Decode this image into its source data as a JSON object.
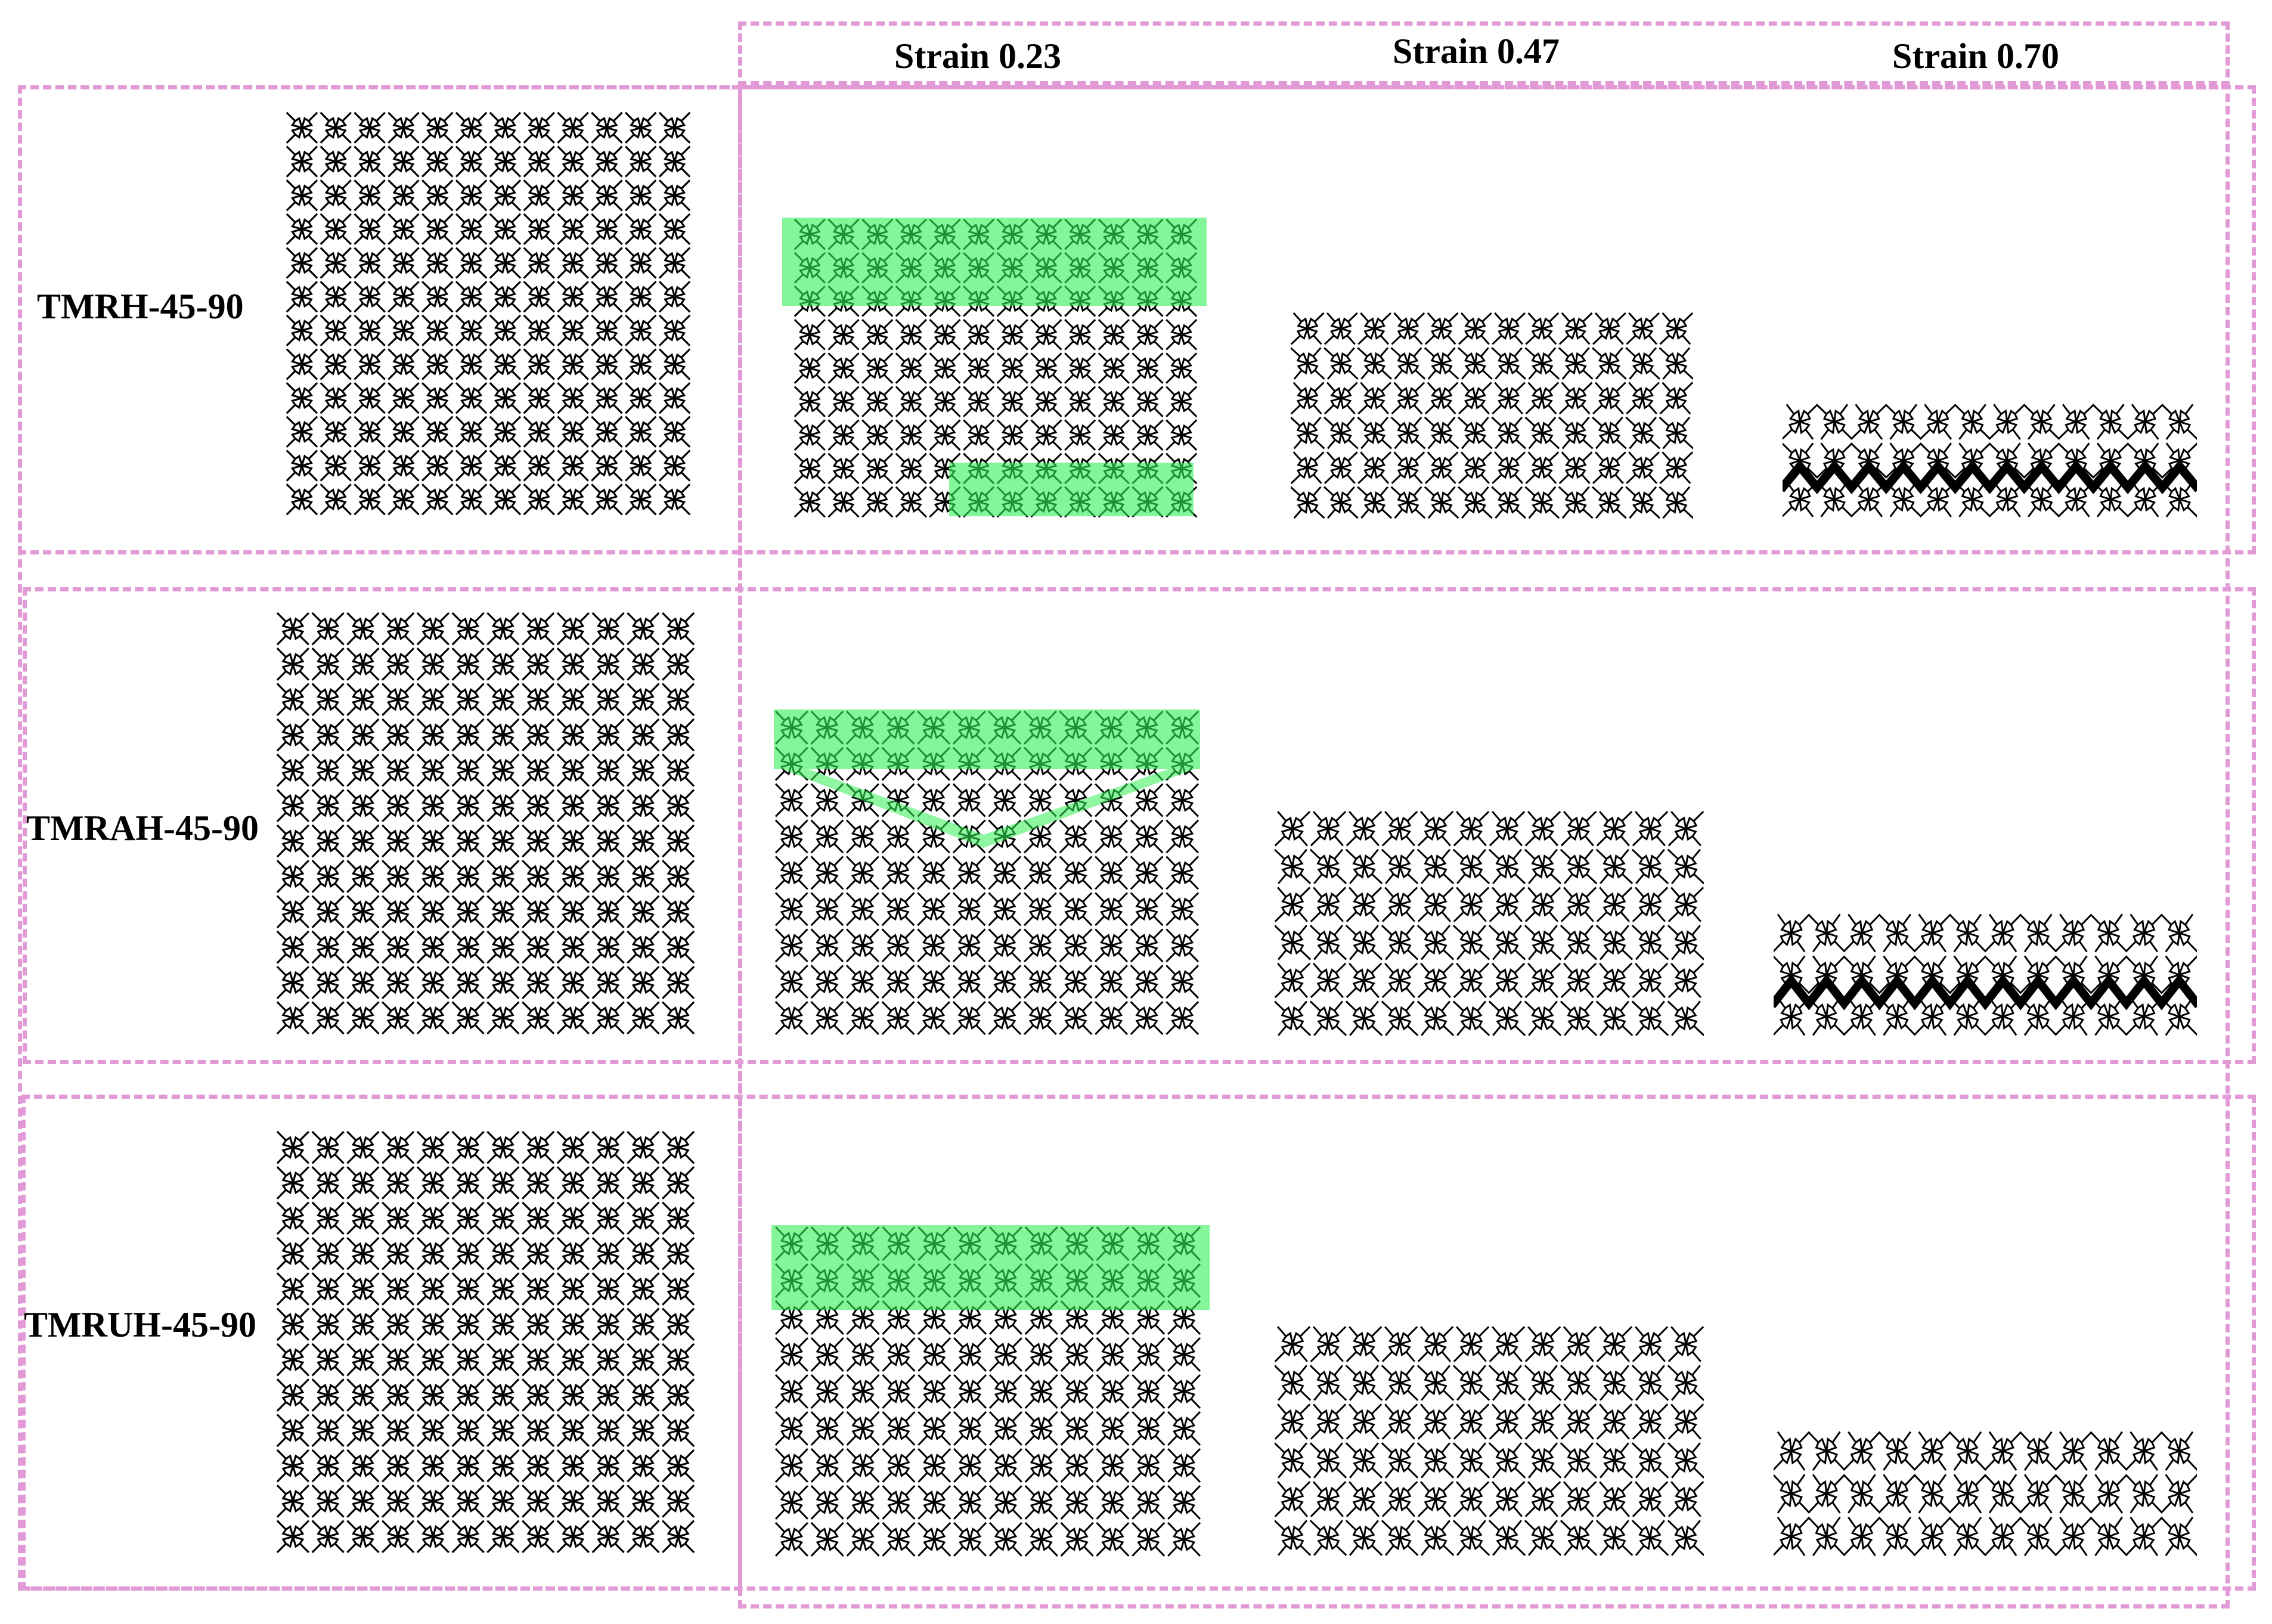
{
  "figure": {
    "column_headers": [
      "Strain 0.23",
      "Strain 0.47",
      "Strain 0.70"
    ],
    "rows": [
      {
        "label": "TMRH-45-90"
      },
      {
        "label": "TMRAH-45-90"
      },
      {
        "label": "TMRUH-45-90"
      }
    ]
  },
  "colors": {
    "frame": "#e29ad6",
    "highlight": "#33ee55",
    "lattice": "#000000"
  }
}
